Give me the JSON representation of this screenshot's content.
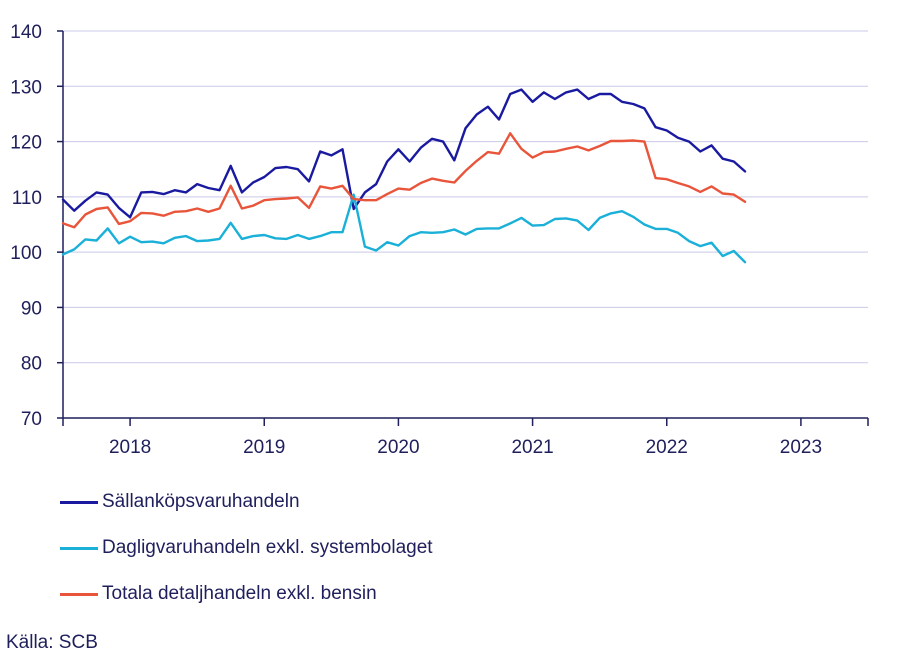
{
  "chart_data": {
    "type": "line",
    "ylim": [
      70,
      140
    ],
    "yticks": [
      70,
      80,
      90,
      100,
      110,
      120,
      130,
      140
    ],
    "xlim": [
      2017.5,
      2023.5
    ],
    "xticks": [
      "2018",
      "2019",
      "2020",
      "2021",
      "2022",
      "2023"
    ],
    "grid": true,
    "legend_position": "bottom",
    "series": [
      {
        "name": "Sällanköpsvaruhandeln",
        "color": "#1a1aa0",
        "values": [
          109.5,
          107.5,
          109.3,
          110.8,
          110.4,
          108.0,
          106.3,
          110.8,
          110.9,
          110.5,
          111.2,
          110.8,
          112.3,
          111.6,
          111.2,
          115.6,
          110.8,
          112.6,
          113.6,
          115.2,
          115.4,
          115.0,
          112.8,
          118.2,
          117.5,
          118.6,
          107.8,
          110.8,
          112.3,
          116.4,
          118.6,
          116.4,
          118.9,
          120.5,
          120.0,
          116.6,
          122.4,
          124.9,
          126.3,
          124.0,
          128.6,
          129.4,
          127.2,
          128.9,
          127.7,
          128.9,
          129.4,
          127.7,
          128.6,
          128.6,
          127.2,
          126.8,
          126.0,
          122.6,
          122.0,
          120.7,
          120.0,
          118.2,
          119.3,
          116.9,
          116.4,
          114.6
        ]
      },
      {
        "name": "Dagligvaruhandeln exkl. systembolaget",
        "color": "#1ab0d8",
        "values": [
          99.6,
          100.5,
          102.3,
          102.1,
          104.3,
          101.6,
          102.8,
          101.8,
          101.9,
          101.6,
          102.6,
          102.9,
          102.0,
          102.1,
          102.4,
          105.3,
          102.4,
          102.9,
          103.1,
          102.5,
          102.4,
          103.1,
          102.4,
          102.9,
          103.6,
          103.6,
          110.4,
          101.0,
          100.3,
          101.8,
          101.2,
          102.9,
          103.6,
          103.5,
          103.6,
          104.1,
          103.2,
          104.2,
          104.3,
          104.3,
          105.2,
          106.2,
          104.8,
          104.9,
          106.0,
          106.1,
          105.7,
          104.0,
          106.2,
          107.0,
          107.4,
          106.4,
          105.0,
          104.2,
          104.2,
          103.5,
          102.0,
          101.1,
          101.7,
          99.3,
          100.2,
          98.2
        ]
      },
      {
        "name": "Totala detaljhandeln exkl. bensin",
        "color": "#e8553a",
        "values": [
          105.2,
          104.5,
          106.8,
          107.8,
          108.1,
          105.1,
          105.6,
          107.1,
          107.0,
          106.6,
          107.3,
          107.4,
          107.9,
          107.3,
          107.9,
          112.0,
          107.9,
          108.4,
          109.4,
          109.6,
          109.7,
          109.9,
          108.0,
          111.9,
          111.5,
          112.0,
          109.6,
          109.4,
          109.4,
          110.5,
          111.5,
          111.3,
          112.5,
          113.3,
          112.9,
          112.6,
          114.7,
          116.5,
          118.1,
          117.8,
          121.5,
          118.7,
          117.1,
          118.1,
          118.2,
          118.7,
          119.1,
          118.4,
          119.2,
          120.1,
          120.1,
          120.2,
          120.0,
          113.4,
          113.2,
          112.5,
          111.9,
          110.9,
          111.9,
          110.6,
          110.4,
          109.1
        ]
      }
    ]
  },
  "source": "Källa: SCB"
}
